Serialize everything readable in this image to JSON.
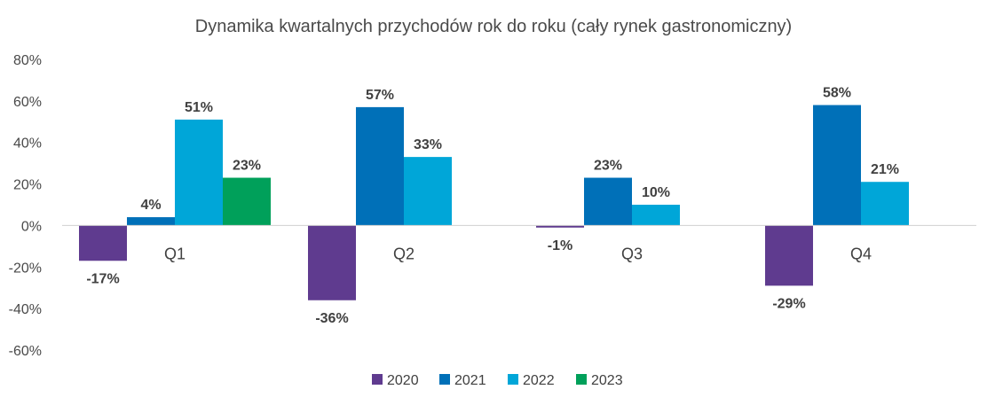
{
  "chart_data": {
    "type": "bar",
    "title": "Dynamika kwartalnych przychodów rok do roku (cały rynek gastronomiczny)",
    "xlabel": "",
    "ylabel": "",
    "categories": [
      "Q1",
      "Q2",
      "Q3",
      "Q4"
    ],
    "series": [
      {
        "name": "2020",
        "color": "#5f3b8f",
        "values": [
          -17,
          -36,
          -1,
          -29
        ],
        "labels": [
          "-17%",
          "-36%",
          "-1%",
          "-29%"
        ]
      },
      {
        "name": "2021",
        "color": "#0070b8",
        "values": [
          4,
          57,
          23,
          58
        ],
        "labels": [
          "4%",
          "57%",
          "23%",
          "58%"
        ]
      },
      {
        "name": "2022",
        "color": "#00a6d8",
        "values": [
          51,
          33,
          10,
          21
        ],
        "labels": [
          "51%",
          "33%",
          "10%",
          "21%"
        ]
      },
      {
        "name": "2023",
        "color": "#00a05a",
        "values": [
          23,
          null,
          null,
          null
        ],
        "labels": [
          "23%",
          null,
          null,
          null
        ]
      }
    ],
    "ylim": [
      -60,
      80
    ],
    "yticks": [
      80,
      60,
      40,
      20,
      0,
      -20,
      -40,
      -60
    ],
    "ytick_labels": [
      "80%",
      "60%",
      "40%",
      "20%",
      "0%",
      "-20%",
      "-40%",
      "-60%"
    ],
    "grid": false,
    "legend_position": "bottom"
  }
}
